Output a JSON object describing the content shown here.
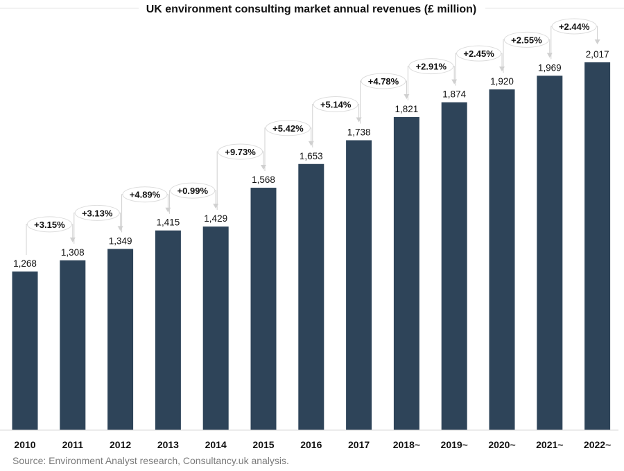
{
  "chart_data": {
    "type": "bar",
    "title": "UK environment consulting market annual revenues (£ million)",
    "xlabel": "",
    "ylabel": "",
    "ylim": [
      700,
      2100
    ],
    "grid": false,
    "legend": "none",
    "bar_color": "#2e4459",
    "categories": [
      "2010",
      "2011",
      "2012",
      "2013",
      "2014",
      "2015",
      "2016",
      "2017",
      "2018~",
      "2019~",
      "2020~",
      "2021~",
      "2022~"
    ],
    "values": [
      1268,
      1308,
      1349,
      1415,
      1429,
      1568,
      1653,
      1738,
      1821,
      1874,
      1920,
      1969,
      2017
    ],
    "value_labels": [
      "1,268",
      "1,308",
      "1,349",
      "1,415",
      "1,429",
      "1,568",
      "1,653",
      "1,738",
      "1,821",
      "1,874",
      "1,920",
      "1,969",
      "2,017"
    ],
    "growth_labels": [
      "+3.15%",
      "+3.13%",
      "+4.89%",
      "+0.99%",
      "+9.73%",
      "+5.42%",
      "+5.14%",
      "+4.78%",
      "+2.91%",
      "+2.45%",
      "+2.55%",
      "+2.44%"
    ],
    "source": "Source: Environment Analyst research, Consultancy.uk analysis."
  }
}
